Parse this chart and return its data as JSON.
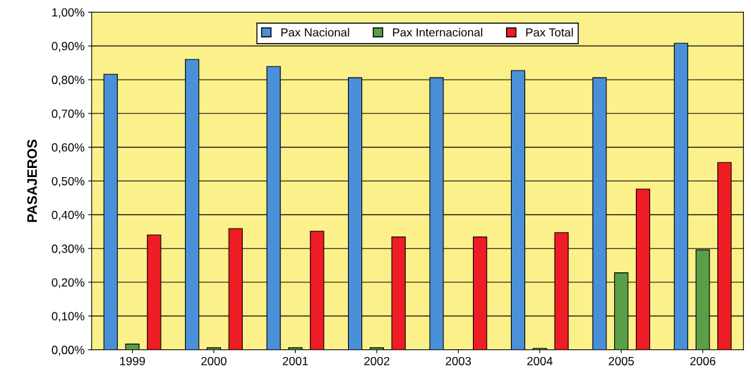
{
  "chart_data": {
    "type": "bar",
    "ylabel": "PASAJEROS",
    "categories": [
      "1999",
      "2000",
      "2001",
      "2002",
      "2003",
      "2004",
      "2005",
      "2006"
    ],
    "series": [
      {
        "name": "Pax Nacional",
        "color": "#4a90d9",
        "values": [
          0.816,
          0.86,
          0.839,
          0.806,
          0.806,
          0.827,
          0.806,
          0.908
        ]
      },
      {
        "name": "Pax Internacional",
        "color": "#5a9e48",
        "values": [
          0.017,
          0.006,
          0.006,
          0.006,
          null,
          0.004,
          0.228,
          0.296
        ]
      },
      {
        "name": "Pax Total",
        "color": "#ee1c25",
        "values": [
          0.34,
          0.359,
          0.351,
          0.334,
          0.334,
          0.347,
          0.476,
          0.555
        ]
      }
    ],
    "ylim": [
      0,
      1
    ],
    "yticks": [
      {
        "value": 0,
        "label": "0,00%"
      },
      {
        "value": 0.1,
        "label": "0,10%"
      },
      {
        "value": 0.2,
        "label": "0,20%"
      },
      {
        "value": 0.3,
        "label": "0,30%"
      },
      {
        "value": 0.4,
        "label": "0,40%"
      },
      {
        "value": 0.5,
        "label": "0,50%"
      },
      {
        "value": 0.6,
        "label": "0,60%"
      },
      {
        "value": 0.7,
        "label": "0,70%"
      },
      {
        "value": 0.8,
        "label": "0,80%"
      },
      {
        "value": 0.9,
        "label": "0,90%"
      },
      {
        "value": 1,
        "label": "1,00%"
      }
    ],
    "grid": "y",
    "legend": "top"
  }
}
